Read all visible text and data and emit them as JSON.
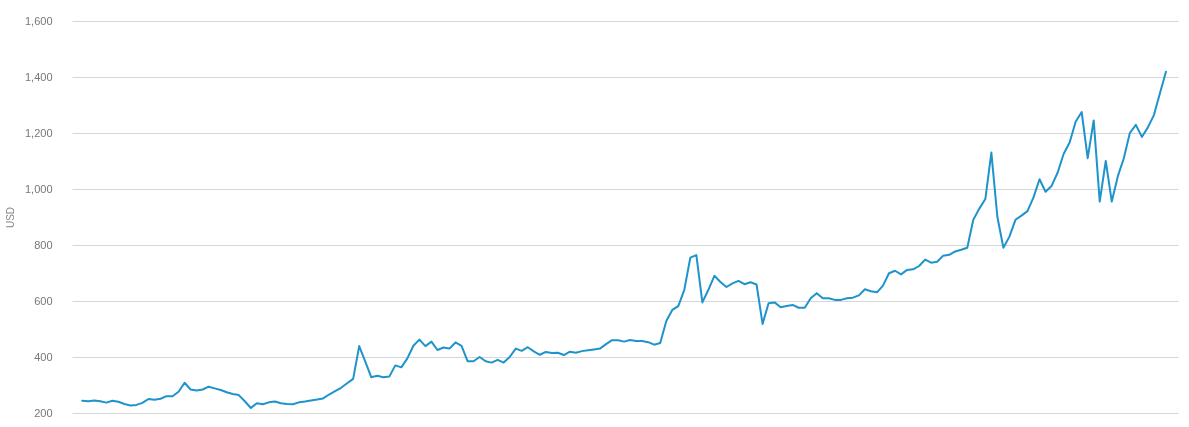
{
  "chart_data": {
    "type": "line",
    "ylabel": "USD",
    "categories": [
      null,
      null,
      null,
      null,
      null,
      null,
      null,
      null,
      null,
      null,
      null,
      null,
      null,
      null,
      null,
      null,
      null,
      null,
      null,
      null,
      null,
      null,
      null,
      null,
      null,
      null,
      null,
      null,
      null,
      null,
      null,
      null,
      null,
      null,
      null,
      null,
      null,
      null,
      null,
      null,
      null,
      null,
      null,
      null,
      null,
      null,
      null,
      null,
      null,
      null,
      null,
      null,
      null,
      null,
      null,
      null,
      null,
      null,
      null,
      null,
      null,
      null,
      null,
      null,
      null,
      null,
      null,
      null,
      null,
      null,
      null,
      null,
      null,
      null,
      null,
      null,
      null,
      null,
      null,
      null,
      null,
      null,
      null,
      null,
      null,
      null,
      null,
      null,
      null,
      null,
      null,
      null,
      null,
      null,
      null,
      null,
      null,
      null,
      null,
      null,
      null,
      null,
      null,
      null,
      null,
      null,
      null,
      null,
      null,
      null,
      null,
      null,
      null,
      null,
      null,
      null,
      null,
      null,
      null,
      null,
      null,
      null,
      null,
      null,
      null,
      null,
      null,
      null,
      null,
      null,
      null,
      null,
      null,
      null,
      null,
      null,
      null,
      null,
      null,
      null,
      null,
      null,
      null,
      null,
      null,
      null,
      null,
      null,
      null,
      null,
      null,
      null,
      null,
      null,
      null,
      null,
      null,
      null,
      null,
      null,
      null,
      null,
      null,
      null,
      null,
      null,
      null,
      null,
      null,
      null,
      null,
      null,
      null,
      null,
      null,
      null,
      null,
      null,
      null,
      null,
      null
    ],
    "series": [
      {
        "color": "#1e93cc",
        "values": [
          244,
          242,
          245,
          242,
          237,
          244,
          240,
          232,
          227,
          229,
          236,
          250,
          247,
          251,
          260,
          260,
          276,
          308,
          284,
          280,
          284,
          294,
          288,
          282,
          274,
          268,
          264,
          242,
          218,
          235,
          231,
          238,
          241,
          235,
          232,
          231,
          238,
          241,
          245,
          248,
          252,
          266,
          278,
          290,
          306,
          322,
          439,
          384,
          328,
          333,
          328,
          330,
          370,
          363,
          395,
          440,
          462,
          439,
          455,
          425,
          434,
          430,
          452,
          440,
          385,
          385,
          400,
          385,
          380,
          390,
          380,
          400,
          430,
          422,
          435,
          420,
          408,
          418,
          414,
          415,
          407,
          419,
          415,
          421,
          424,
          427,
          430,
          446,
          460,
          460,
          455,
          461,
          457,
          457,
          453,
          444,
          450,
          528,
          568,
          582,
          640,
          755,
          764,
          595,
          640,
          690,
          668,
          650,
          663,
          672,
          660,
          667,
          659,
          518,
          592,
          595,
          578,
          582,
          586,
          576,
          576,
          610,
          628,
          610,
          610,
          604,
          604,
          610,
          612,
          620,
          642,
          635,
          631,
          655,
          699,
          708,
          695,
          711,
          713,
          725,
          748,
          737,
          740,
          762,
          765,
          777,
          783,
          790,
          890,
          930,
          964,
          1130,
          900,
          790,
          830,
          890,
          905,
          921,
          970,
          1035,
          990,
          1011,
          1058,
          1125,
          1166,
          1240,
          1275,
          1110,
          1245,
          955,
          1100,
          955,
          1045,
          1110,
          1200,
          1229,
          1186,
          1220,
          1264,
          1342,
          1419
        ]
      }
    ],
    "ylim": [
      200,
      1600
    ],
    "yticks": [
      200,
      400,
      600,
      800,
      {
        "value": 1000,
        "label": "1,000"
      },
      {
        "value": 1200,
        "label": "1,200"
      },
      {
        "value": 1400,
        "label": "1,400"
      },
      {
        "value": 1600,
        "label": "1,600"
      }
    ],
    "grid": "y",
    "marker": "none",
    "line_style": "solid"
  }
}
